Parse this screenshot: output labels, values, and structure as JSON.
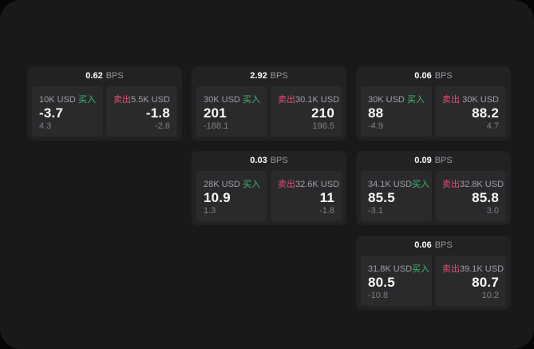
{
  "page": {
    "outer_background": "#060607",
    "panel_background": "#19191b"
  },
  "colors": {
    "card_background": "#222224",
    "tile_background": "#2a2a2c",
    "buy_green": "#3eba6a",
    "sell_red": "#e0506e",
    "value_white": "#fafafa",
    "label_gray": "#9fa0a4",
    "delta_gray": "#818185"
  },
  "labels": {
    "bps_suffix": "BPS",
    "buy": "买入",
    "sell": "卖出"
  },
  "cards": [
    {
      "col": 1,
      "row": 1,
      "bps": "0.62",
      "buy": {
        "amount": "10K USD",
        "value": "-3.7",
        "delta": "4.3"
      },
      "sell": {
        "amount": "5.5K USD",
        "value": "-1.8",
        "delta": "-2.6"
      }
    },
    {
      "col": 2,
      "row": 1,
      "bps": "2.92",
      "buy": {
        "amount": "30K USD",
        "value": "201",
        "delta": "-188.1"
      },
      "sell": {
        "amount": "30.1K USD",
        "value": "210",
        "delta": "196.5"
      }
    },
    {
      "col": 3,
      "row": 1,
      "bps": "0.06",
      "buy": {
        "amount": "30K USD",
        "value": "88",
        "delta": "-4.9"
      },
      "sell": {
        "amount": "30K USD",
        "value": "88.2",
        "delta": "4.7"
      }
    },
    {
      "col": 2,
      "row": 2,
      "bps": "0.03",
      "buy": {
        "amount": "28K USD",
        "value": "10.9",
        "delta": "1.3"
      },
      "sell": {
        "amount": "32.6K USD",
        "value": "11",
        "delta": "-1.8"
      }
    },
    {
      "col": 3,
      "row": 2,
      "bps": "0.09",
      "buy": {
        "amount": "34.1K USD",
        "value": "85.5",
        "delta": "-3.1"
      },
      "sell": {
        "amount": "32.8K USD",
        "value": "85.8",
        "delta": "3.0"
      }
    },
    {
      "col": 3,
      "row": 3,
      "bps": "0.06",
      "buy": {
        "amount": "31.8K USD",
        "value": "80.5",
        "delta": "-10.8"
      },
      "sell": {
        "amount": "39.1K USD",
        "value": "80.7",
        "delta": "10.2"
      }
    }
  ]
}
